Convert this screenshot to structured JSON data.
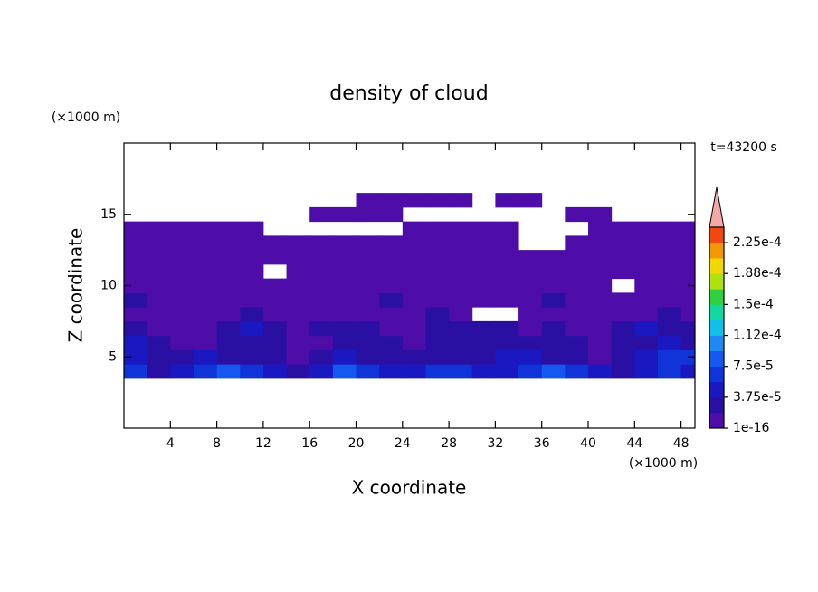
{
  "chart_data": {
    "type": "contour",
    "title": "density of cloud",
    "xlabel": "X coordinate",
    "ylabel": "Z coordinate",
    "x_unit": "(×1000 m)",
    "y_unit": "(×1000 m)",
    "annotation": "t=43200 s",
    "xlim": [
      0,
      49.2
    ],
    "ylim": [
      0,
      20
    ],
    "xticks": [
      4,
      8,
      12,
      16,
      20,
      24,
      28,
      32,
      36,
      40,
      44,
      48
    ],
    "yticks": [
      5,
      10,
      15
    ],
    "x": [
      1,
      3,
      5,
      7,
      9,
      11,
      13,
      15,
      17,
      19,
      21,
      23,
      25,
      27,
      29,
      31,
      33,
      35,
      37,
      39,
      41,
      43,
      45,
      47,
      49
    ],
    "y": [
      4,
      5,
      6,
      7,
      8,
      9,
      10,
      11,
      12,
      13,
      14,
      15,
      16
    ],
    "z": [
      [
        6.5e-05,
        2.5e-05,
        4.5e-05,
        6.5e-05,
        8.5e-05,
        6.5e-05,
        4.5e-05,
        2.5e-05,
        4.5e-05,
        8.5e-05,
        6.5e-05,
        4.5e-05,
        4.5e-05,
        6.5e-05,
        6.5e-05,
        4.5e-05,
        4.5e-05,
        6.5e-05,
        8.5e-05,
        6.5e-05,
        4.5e-05,
        2.5e-05,
        4.5e-05,
        6.5e-05,
        4.5e-05
      ],
      [
        4.5e-05,
        2.5e-05,
        2.5e-05,
        4.5e-05,
        2.5e-05,
        2.5e-05,
        2.5e-05,
        1e-05,
        2.5e-05,
        4.5e-05,
        2.5e-05,
        2.5e-05,
        2.5e-05,
        2.5e-05,
        2.5e-05,
        2.5e-05,
        4.5e-05,
        4.5e-05,
        2.5e-05,
        2.5e-05,
        1e-05,
        2.5e-05,
        4.5e-05,
        6.5e-05,
        6.5e-05
      ],
      [
        4.5e-05,
        2.5e-05,
        1e-05,
        1e-05,
        2.5e-05,
        2.5e-05,
        2.5e-05,
        1e-05,
        1e-05,
        2.5e-05,
        2.5e-05,
        2.5e-05,
        1e-05,
        2.5e-05,
        2.5e-05,
        2.5e-05,
        2.5e-05,
        2.5e-05,
        2.5e-05,
        2.5e-05,
        1e-05,
        2.5e-05,
        2.5e-05,
        4.5e-05,
        2.5e-05
      ],
      [
        2.5e-05,
        1e-05,
        1e-05,
        1e-05,
        2.5e-05,
        4.5e-05,
        2.5e-05,
        1e-05,
        2.5e-05,
        2.5e-05,
        2.5e-05,
        1e-05,
        1e-05,
        2.5e-05,
        2.5e-05,
        2.5e-05,
        2.5e-05,
        1e-05,
        2.5e-05,
        1e-05,
        1e-05,
        2.5e-05,
        4.5e-05,
        2.5e-05,
        2.5e-05
      ],
      [
        1e-05,
        1e-05,
        1e-05,
        1e-05,
        1e-05,
        2.5e-05,
        1e-05,
        1e-05,
        1e-05,
        1e-05,
        1e-05,
        1e-05,
        1e-05,
        2.5e-05,
        1e-05,
        null,
        null,
        1e-05,
        1e-05,
        1e-05,
        1e-05,
        1e-05,
        1e-05,
        2.5e-05,
        1e-05
      ],
      [
        2.5e-05,
        1e-05,
        1e-05,
        1e-05,
        1e-05,
        1e-05,
        1e-05,
        1e-05,
        1e-05,
        1e-05,
        1e-05,
        2.5e-05,
        1e-05,
        1e-05,
        1e-05,
        1e-05,
        1e-05,
        1e-05,
        2.5e-05,
        1e-05,
        1e-05,
        1e-05,
        1e-05,
        1e-05,
        1e-05
      ],
      [
        1e-05,
        1e-05,
        1e-05,
        1e-05,
        1e-05,
        1e-05,
        1e-05,
        1e-05,
        1e-05,
        1e-05,
        1e-05,
        1e-05,
        1e-05,
        1e-05,
        1e-05,
        1e-05,
        1e-05,
        1e-05,
        1e-05,
        1e-05,
        1e-05,
        null,
        1e-05,
        1e-05,
        1e-05
      ],
      [
        1e-05,
        1e-05,
        1e-05,
        1e-05,
        1e-05,
        1e-05,
        null,
        1e-05,
        1e-05,
        1e-05,
        1e-05,
        1e-05,
        1e-05,
        1e-05,
        1e-05,
        1e-05,
        1e-05,
        1e-05,
        1e-05,
        1e-05,
        1e-05,
        1e-05,
        1e-05,
        1e-05,
        1e-05
      ],
      [
        1e-05,
        1e-05,
        1e-05,
        1e-05,
        1e-05,
        1e-05,
        1e-05,
        1e-05,
        1e-05,
        1e-05,
        1e-05,
        1e-05,
        1e-05,
        1e-05,
        1e-05,
        1e-05,
        1e-05,
        1e-05,
        1e-05,
        1e-05,
        1e-05,
        1e-05,
        1e-05,
        1e-05,
        1e-05
      ],
      [
        1e-05,
        1e-05,
        1e-05,
        1e-05,
        1e-05,
        1e-05,
        1e-05,
        1e-05,
        1e-05,
        1e-05,
        1e-05,
        1e-05,
        1e-05,
        1e-05,
        1e-05,
        1e-05,
        1e-05,
        null,
        null,
        1e-05,
        1e-05,
        1e-05,
        1e-05,
        1e-05,
        1e-05
      ],
      [
        1e-05,
        1e-05,
        1e-05,
        1e-05,
        1e-05,
        1e-05,
        null,
        null,
        null,
        null,
        null,
        null,
        1e-05,
        1e-05,
        1e-05,
        1e-05,
        1e-05,
        null,
        null,
        null,
        1e-05,
        1e-05,
        1e-05,
        1e-05,
        1e-05
      ],
      [
        null,
        null,
        null,
        null,
        null,
        null,
        null,
        null,
        1e-05,
        1e-05,
        1e-05,
        1e-05,
        null,
        null,
        null,
        null,
        null,
        null,
        null,
        1e-05,
        1e-05,
        null,
        null,
        null,
        null
      ],
      [
        null,
        null,
        null,
        null,
        null,
        null,
        null,
        null,
        null,
        null,
        1e-05,
        1e-05,
        1e-05,
        1e-05,
        1e-05,
        null,
        1e-05,
        1e-05,
        null,
        null,
        null,
        null,
        null,
        null,
        null
      ]
    ],
    "colorbar": {
      "levels": [
        1e-16,
        1.875e-05,
        3.75e-05,
        5.625e-05,
        7.5e-05,
        9.375e-05,
        0.0001125,
        0.00013125,
        0.00015,
        0.00016875,
        0.0001875,
        0.00020625,
        0.000225,
        0.00024375
      ],
      "colors": [
        "#4e0ca8",
        "#2a10a2",
        "#1a18c0",
        "#1034d8",
        "#1458f0",
        "#2088f0",
        "#10c0e8",
        "#10d8a0",
        "#30d040",
        "#b0e010",
        "#f0d800",
        "#f09800",
        "#f04810"
      ],
      "extend_color": "#f4a8a8",
      "ticks": [
        1e-16,
        {
          "value": 3.75e-05,
          "label": "3.75e-5"
        },
        {
          "value": 7.5e-05,
          "label": "7.5e-5"
        },
        {
          "value": 0.0001125,
          "label": "1.12e-4"
        },
        {
          "value": 0.00015,
          "label": "1.5e-4"
        },
        {
          "value": 0.0001875,
          "label": "1.88e-4"
        },
        {
          "value": 0.000225,
          "label": "2.25e-4"
        }
      ]
    }
  }
}
